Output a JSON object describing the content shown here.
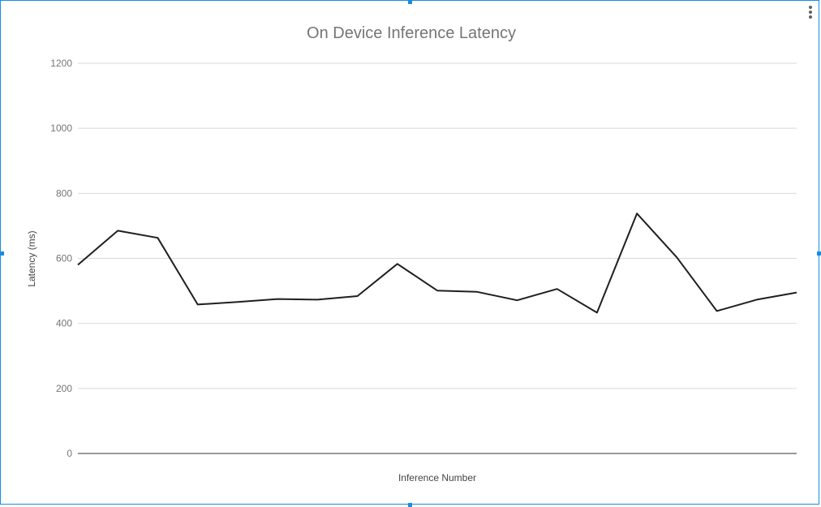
{
  "chart_data": {
    "type": "line",
    "title": "On Device Inference Latency",
    "xlabel": "Inference Number",
    "ylabel": "Latency (ms)",
    "ylim": [
      0,
      1200
    ],
    "yticks": [
      0,
      200,
      400,
      600,
      800,
      1000,
      1200
    ],
    "grid": true,
    "legend": "none",
    "x": [
      1,
      2,
      3,
      4,
      5,
      6,
      7,
      8,
      9,
      10,
      11,
      12,
      13,
      14,
      15,
      16,
      17,
      18,
      19
    ],
    "series": [
      {
        "values": [
          580,
          685,
          663,
          458,
          466,
          475,
          473,
          484,
          583,
          501,
          497,
          471,
          506,
          433,
          738,
          603,
          438,
          473,
          495
        ]
      }
    ],
    "colors": {
      "line": "#1f1f1f",
      "grid": "#d9d9d9",
      "selection": "#1a8ce0"
    }
  }
}
